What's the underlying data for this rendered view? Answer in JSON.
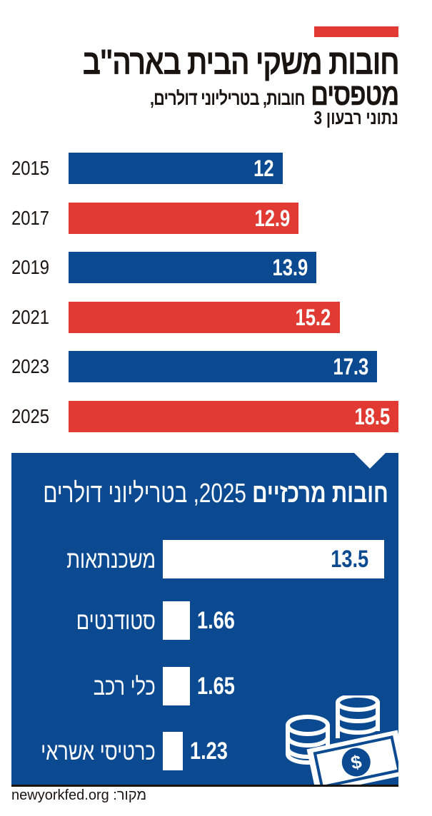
{
  "colors": {
    "red": "#e03a33",
    "blue": "#0b4a91"
  },
  "header": {
    "title_line1": "חובות משקי הבית בארה\"ב",
    "title_line2": "מטפסים",
    "subtitle_line1": "חובות, בטריליוני דולרים,",
    "subtitle_line2": "נתוני רבעון 3"
  },
  "chart_data": [
    {
      "type": "bar",
      "orientation": "horizontal",
      "categories": [
        "2015",
        "2017",
        "2019",
        "2021",
        "2023",
        "2025"
      ],
      "values": [
        12,
        12.9,
        13.9,
        15.2,
        17.3,
        18.5
      ],
      "labels": [
        "12",
        "12.9",
        "13.9",
        "15.2",
        "17.3",
        "18.5"
      ],
      "bar_colors": [
        "#0b4a91",
        "#e03a33",
        "#0b4a91",
        "#e03a33",
        "#0b4a91",
        "#e03a33"
      ],
      "xlim": [
        0,
        18.5
      ]
    },
    {
      "type": "bar",
      "orientation": "horizontal",
      "title": "חובות מרכזיים 2025, בטריליוני דולרים",
      "title_bold": "חובות מרכזיים",
      "title_rest": "2025, בטריליוני דולרים",
      "categories": [
        "משכנתאות",
        "סטודנטים",
        "כלי רכב",
        "כרטיסי אשראי"
      ],
      "values": [
        13.5,
        1.66,
        1.65,
        1.23
      ],
      "labels": [
        "13.5",
        "1.66",
        "1.65",
        "1.23"
      ],
      "xlim": [
        0,
        13.5
      ],
      "icon": "coins-and-banknote-icon"
    }
  ],
  "footer": {
    "source": "מקור: newyorkfed.org"
  }
}
